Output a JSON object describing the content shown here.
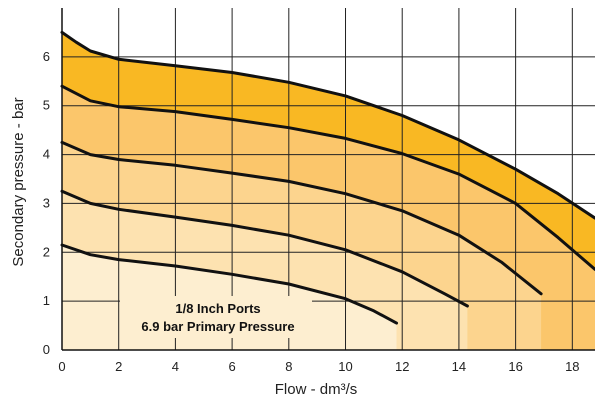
{
  "chart_data": {
    "type": "line",
    "title": "",
    "xlabel": "Flow - dm³/s",
    "ylabel": "Secondary pressure - bar",
    "xlim": [
      0,
      18.8
    ],
    "ylim": [
      0,
      7
    ],
    "x_ticks": [
      0,
      2,
      4,
      6,
      8,
      10,
      12,
      14,
      16,
      18
    ],
    "y_ticks": [
      0,
      1,
      2,
      3,
      4,
      5,
      6
    ],
    "grid": true,
    "annotations": [
      "1/8 Inch Ports",
      "6.9 bar Primary Pressure"
    ],
    "fill_colors": [
      "#fdeed0",
      "#fde2b0",
      "#fcd48e",
      "#fbc66b",
      "#f9b823"
    ],
    "series": [
      {
        "x": [
          0,
          1,
          2,
          4,
          6,
          8,
          10,
          11,
          11.8
        ],
        "y": [
          2.15,
          1.95,
          1.85,
          1.72,
          1.55,
          1.35,
          1.05,
          0.8,
          0.55
        ]
      },
      {
        "x": [
          0,
          1,
          2,
          4,
          6,
          8,
          10,
          12,
          13.5,
          14.3
        ],
        "y": [
          3.25,
          3.0,
          2.88,
          2.72,
          2.55,
          2.35,
          2.05,
          1.6,
          1.15,
          0.9
        ]
      },
      {
        "x": [
          0,
          1,
          2,
          4,
          6,
          8,
          10,
          12,
          14,
          15.5,
          16.9
        ],
        "y": [
          4.25,
          4.0,
          3.9,
          3.78,
          3.62,
          3.45,
          3.2,
          2.85,
          2.35,
          1.8,
          1.15
        ]
      },
      {
        "x": [
          0,
          1,
          2,
          4,
          6,
          8,
          10,
          12,
          14,
          16,
          17.5,
          18.8
        ],
        "y": [
          5.4,
          5.1,
          4.98,
          4.88,
          4.72,
          4.55,
          4.33,
          4.02,
          3.6,
          3.0,
          2.3,
          1.65
        ]
      },
      {
        "x": [
          0,
          0.5,
          1,
          2,
          4,
          6,
          8,
          10,
          12,
          14,
          16,
          17.5,
          18.8
        ],
        "y": [
          6.5,
          6.3,
          6.12,
          5.95,
          5.82,
          5.68,
          5.48,
          5.2,
          4.8,
          4.3,
          3.7,
          3.2,
          2.7
        ]
      }
    ]
  }
}
